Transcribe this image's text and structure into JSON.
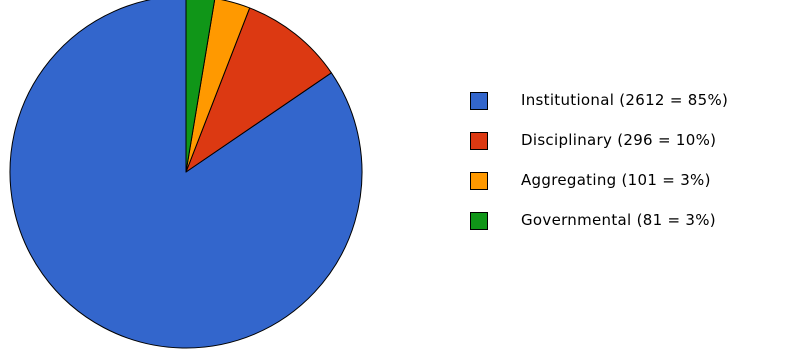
{
  "chart_data": {
    "type": "pie",
    "slices": [
      {
        "name": "Institutional",
        "value": 2612,
        "percent": 85,
        "color": "#3366CC",
        "label": "Institutional (2612 = 85%)"
      },
      {
        "name": "Disciplinary",
        "value": 296,
        "percent": 10,
        "color": "#DC3912",
        "label": "Disciplinary (296 = 10%)"
      },
      {
        "name": "Aggregating",
        "value": 101,
        "percent": 3,
        "color": "#FF9900",
        "label": "Aggregating (101 = 3%)"
      },
      {
        "name": "Governmental",
        "value": 81,
        "percent": 3,
        "color": "#109618",
        "label": "Governmental (81 = 3%)"
      }
    ],
    "start_angle": "12 o'clock",
    "direction": "counterclockwise",
    "legend_position": "right"
  }
}
